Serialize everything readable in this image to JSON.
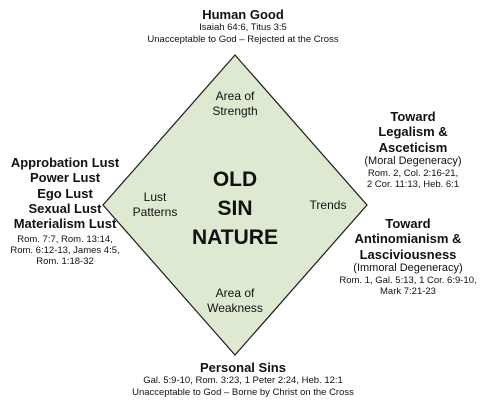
{
  "colors": {
    "diamond_fill": "#dde9d0",
    "diamond_stroke": "#1a1a1a",
    "text": "#111111"
  },
  "top": {
    "title": "Human Good",
    "refs": "Isaiah 64:6, Titus 3:5",
    "note": "Unacceptable to God – Rejected at the Cross"
  },
  "bottom": {
    "title": "Personal Sins",
    "refs": "Gal. 5:9-10, Rom. 3:23, 1 Peter 2:24, Heb. 12:1",
    "note": "Unacceptable to God – Borne by Christ on the Cross"
  },
  "left": {
    "lines": [
      "Approbation Lust",
      "Power Lust",
      "Ego Lust",
      "Sexual Lust",
      "Materialism Lust"
    ],
    "refs": [
      "Rom. 7:7, Rom. 13:14,",
      "Rom. 6:12-13, James 4:5,",
      "Rom. 1:18-32"
    ]
  },
  "right_top": {
    "lines": [
      "Toward",
      "Legalism &",
      "Asceticism"
    ],
    "sub": "(Moral Degeneracy)",
    "refs": [
      "Rom. 2, Col. 2:16-21,",
      "2 Cor. 11:13, Heb. 6:1"
    ]
  },
  "right_bottom": {
    "lines": [
      "Toward",
      "Antinomianism &",
      "Lasciviousness"
    ],
    "sub": "(Immoral Degeneracy)",
    "refs": [
      "Rom. 1, Gal. 5:13, 1 Cor. 6:9-10,",
      "Mark 7:21-23"
    ]
  },
  "diamond": {
    "top_label": [
      "Area of",
      "Strength"
    ],
    "left_label": [
      "Lust",
      "Patterns"
    ],
    "right_label": "Trends",
    "bottom_label": [
      "Area of",
      "Weakness"
    ],
    "center": [
      "OLD",
      "SIN",
      "NATURE"
    ]
  }
}
